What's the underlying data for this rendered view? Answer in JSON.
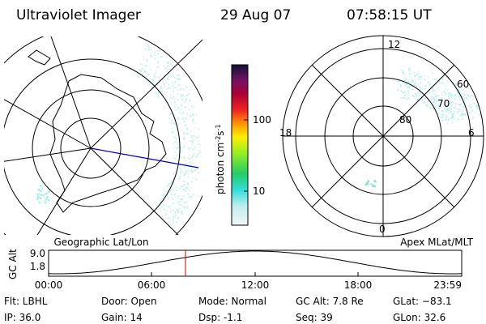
{
  "header": {
    "instrument": "Ultraviolet Imager",
    "date": "29 Aug 07",
    "time": "07:58:15 UT"
  },
  "left_panel": {
    "label": "Geographic Lat/Lon"
  },
  "right_panel": {
    "label": "Apex MLat/MLT",
    "mlt_labels": [
      "12",
      "18",
      "6",
      "0"
    ],
    "lat_labels": [
      "60",
      "70",
      "80"
    ]
  },
  "colorbar": {
    "label_parts": [
      "photon cm",
      "-2",
      "s",
      "-1"
    ],
    "ticks": [
      "100",
      "10"
    ]
  },
  "orbit_plot": {
    "y_label": "GC Alt",
    "y_ticks": [
      "9.0",
      "1.8"
    ],
    "x_ticks": [
      "00:00",
      "06:00",
      "12:00",
      "18:00",
      "23:59"
    ]
  },
  "info": {
    "rows": [
      [
        "Flt: LBHL",
        "Door: Open",
        "Mode: Normal",
        "GC Alt: 7.8 Re",
        "GLat: −83.1"
      ],
      [
        "IP: 36.0",
        "Gain: 14",
        "Dsp:  -1.1",
        "Seq: 39",
        "GLon:  32.6"
      ]
    ]
  }
}
